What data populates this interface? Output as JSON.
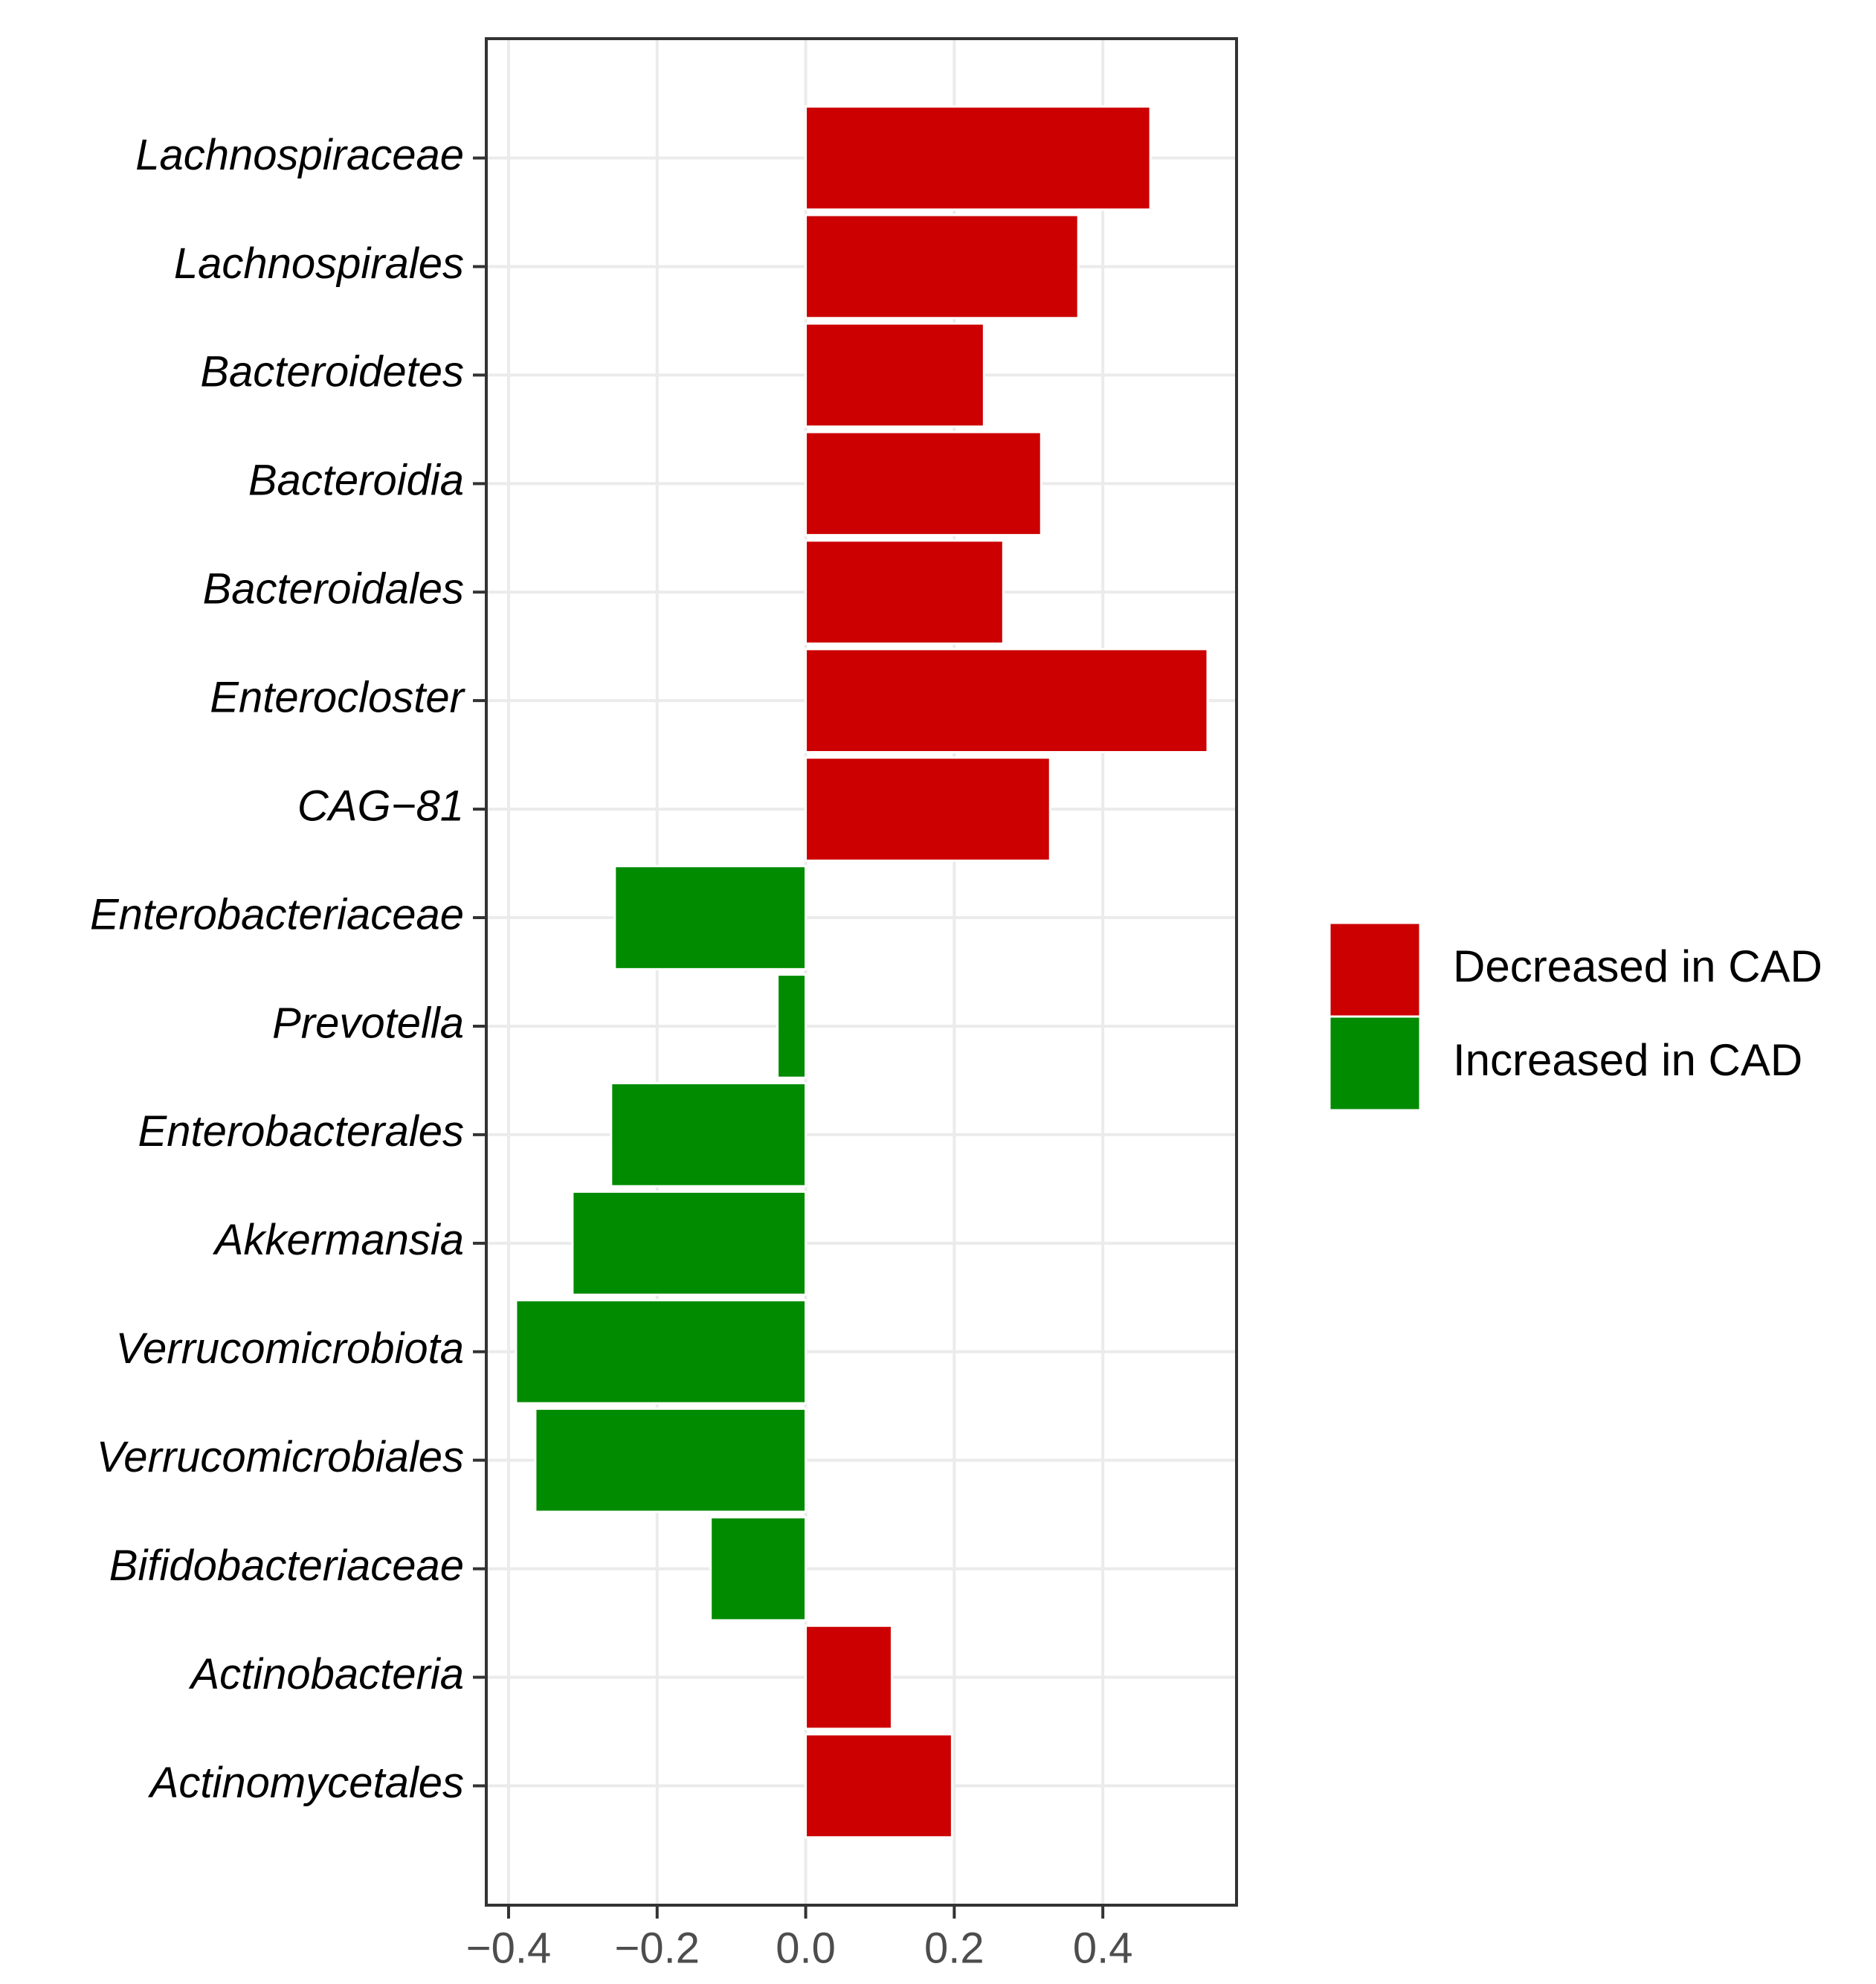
{
  "chart_data": {
    "type": "barh",
    "categories": [
      "Lachnospiraceae",
      "Lachnospirales",
      "Bacteroidetes",
      "Bacteroidia",
      "Bacteroidales",
      "Enterocloster",
      "CAG−81",
      "Enterobacteriaceae",
      "Prevotella",
      "Enterobacterales",
      "Akkermansia",
      "Verrucomicrobiota",
      "Verrucomicrobiales",
      "Bifidobacteriaceae",
      "Actinobacteria",
      "Actinomycetales"
    ],
    "series": [
      {
        "name": "Decreased in CAD",
        "color": "#cc0000",
        "values": [
          0.464,
          0.367,
          0.24,
          0.317,
          0.266,
          0.541,
          0.329,
          null,
          null,
          null,
          null,
          null,
          null,
          null,
          0.116,
          0.197
        ]
      },
      {
        "name": "Increased in CAD",
        "color": "#008b00",
        "values": [
          null,
          null,
          null,
          null,
          null,
          null,
          null,
          -0.257,
          -0.038,
          -0.262,
          -0.314,
          -0.39,
          -0.364,
          -0.128,
          null,
          null
        ]
      }
    ],
    "xlim": [
      -0.43,
      0.58
    ],
    "xticks": [
      {
        "value": -0.4,
        "label": "−0.4"
      },
      {
        "value": -0.2,
        "label": "−0.2"
      },
      {
        "value": 0,
        "label": "0.0"
      },
      0.2,
      0.4
    ],
    "grid": true,
    "legend": "right"
  }
}
